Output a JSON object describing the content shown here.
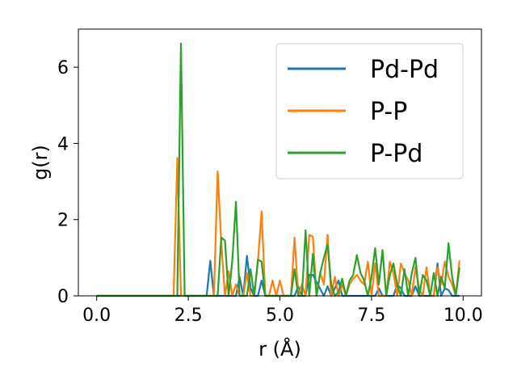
{
  "chart_data": {
    "type": "line",
    "xlabel": "r (Å)",
    "ylabel": "g(r)",
    "xlim": [
      -0.5,
      10.5
    ],
    "ylim": [
      0,
      7
    ],
    "xticks": [
      0.0,
      2.5,
      5.0,
      7.5,
      10.0
    ],
    "xtick_labels": [
      "0.0",
      "2.5",
      "5.0",
      "7.5",
      "10.0"
    ],
    "yticks": [
      0,
      2,
      4,
      6
    ],
    "ytick_labels": [
      "0",
      "2",
      "4",
      "6"
    ],
    "grid": false,
    "legend_position": "top-right",
    "series": [
      {
        "name": "Pd-Pd",
        "color": "#1f77b4",
        "x": [
          0.0,
          3.0,
          3.1,
          3.2,
          3.3,
          3.8,
          3.9,
          4.0,
          4.1,
          4.2,
          4.3,
          4.4,
          4.5,
          4.6,
          5.4,
          5.5,
          5.6,
          5.7,
          5.8,
          5.9,
          6.2,
          6.3,
          6.4,
          6.6,
          6.7,
          6.8,
          7.6,
          7.7,
          7.8,
          8.1,
          8.2,
          8.3,
          8.4,
          8.6,
          8.7,
          8.8,
          9.2,
          9.3,
          9.4,
          9.5,
          9.6,
          9.7,
          9.8,
          9.9
        ],
        "y": [
          0.0,
          0.0,
          0.92,
          0.0,
          0.0,
          0.0,
          0.5,
          0.0,
          1.05,
          0.2,
          0.0,
          0.0,
          0.4,
          0.0,
          0.0,
          0.25,
          0.0,
          0.0,
          0.55,
          0.55,
          0.0,
          0.25,
          0.0,
          0.4,
          0.0,
          0.0,
          0.0,
          0.2,
          0.0,
          0.0,
          0.3,
          0.2,
          0.0,
          0.0,
          0.25,
          0.0,
          0.0,
          0.85,
          0.0,
          0.2,
          0.15,
          0.0,
          0.0,
          0.0
        ]
      },
      {
        "name": "P-P",
        "color": "#ff7f0e",
        "x": [
          0.0,
          2.1,
          2.2,
          2.3,
          3.2,
          3.3,
          3.4,
          3.5,
          3.6,
          3.7,
          3.8,
          3.9,
          4.0,
          4.1,
          4.2,
          4.3,
          4.4,
          4.5,
          4.6,
          4.7,
          4.8,
          4.9,
          5.0,
          5.1,
          5.2,
          5.3,
          5.4,
          5.5,
          5.6,
          5.7,
          5.8,
          5.9,
          6.0,
          6.1,
          6.2,
          6.3,
          6.4,
          6.5,
          6.6,
          6.7,
          6.8,
          6.9,
          7.0,
          7.1,
          7.2,
          7.3,
          7.4,
          7.5,
          7.6,
          7.7,
          7.8,
          7.9,
          8.0,
          8.1,
          8.2,
          8.3,
          8.4,
          8.5,
          8.6,
          8.7,
          8.8,
          8.9,
          9.0,
          9.1,
          9.2,
          9.3,
          9.4,
          9.5,
          9.6,
          9.7,
          9.8,
          9.9
        ],
        "y": [
          0.0,
          0.0,
          3.62,
          0.0,
          0.0,
          3.27,
          1.4,
          0.0,
          0.65,
          0.0,
          0.3,
          0.0,
          0.0,
          0.6,
          0.0,
          0.0,
          0.9,
          2.22,
          0.0,
          0.0,
          0.4,
          0.0,
          0.4,
          0.0,
          0.0,
          0.0,
          1.53,
          0.0,
          0.3,
          0.0,
          1.6,
          1.55,
          0.0,
          0.6,
          0.3,
          1.6,
          0.0,
          0.5,
          0.0,
          0.3,
          0.0,
          0.3,
          0.45,
          0.55,
          0.4,
          0.3,
          0.9,
          0.0,
          0.85,
          0.0,
          0.0,
          0.0,
          0.9,
          0.6,
          0.0,
          0.85,
          0.6,
          0.4,
          0.0,
          0.75,
          0.2,
          0.0,
          0.75,
          0.0,
          0.0,
          0.75,
          0.3,
          0.9,
          0.5,
          0.3,
          0.0,
          0.93
        ]
      },
      {
        "name": "P-Pd",
        "color": "#2ca02c",
        "x": [
          0.0,
          2.2,
          2.3,
          2.4,
          3.3,
          3.4,
          3.5,
          3.6,
          3.7,
          3.8,
          3.9,
          4.0,
          4.1,
          4.2,
          4.3,
          4.4,
          4.5,
          4.6,
          4.7,
          4.8,
          4.9,
          5.0,
          5.1,
          5.2,
          5.3,
          5.4,
          5.5,
          5.6,
          5.7,
          5.8,
          5.9,
          6.0,
          6.1,
          6.2,
          6.3,
          6.4,
          6.5,
          6.6,
          6.7,
          6.8,
          6.9,
          7.0,
          7.1,
          7.2,
          7.3,
          7.4,
          7.5,
          7.6,
          7.7,
          7.8,
          7.9,
          8.0,
          8.1,
          8.2,
          8.3,
          8.4,
          8.5,
          8.6,
          8.7,
          8.8,
          8.9,
          9.0,
          9.1,
          9.2,
          9.3,
          9.4,
          9.5,
          9.6,
          9.7,
          9.8,
          9.9
        ],
        "y": [
          0.0,
          0.0,
          6.62,
          0.0,
          0.0,
          1.53,
          1.45,
          0.0,
          0.9,
          2.47,
          0.0,
          0.0,
          0.0,
          0.7,
          0.0,
          0.95,
          0.9,
          0.0,
          0.0,
          0.0,
          0.0,
          0.0,
          0.0,
          0.0,
          0.0,
          0.7,
          0.0,
          0.0,
          1.72,
          0.0,
          1.1,
          0.0,
          0.6,
          1.0,
          1.35,
          0.3,
          0.0,
          0.1,
          0.45,
          0.0,
          0.4,
          0.55,
          1.07,
          0.6,
          0.4,
          0.0,
          0.5,
          1.25,
          0.3,
          1.2,
          0.0,
          0.55,
          0.85,
          0.3,
          0.0,
          0.7,
          0.0,
          0.6,
          1.0,
          0.0,
          0.55,
          0.4,
          0.0,
          0.6,
          0.0,
          0.5,
          0.2,
          1.38,
          0.5,
          0.0,
          0.75
        ]
      }
    ]
  }
}
